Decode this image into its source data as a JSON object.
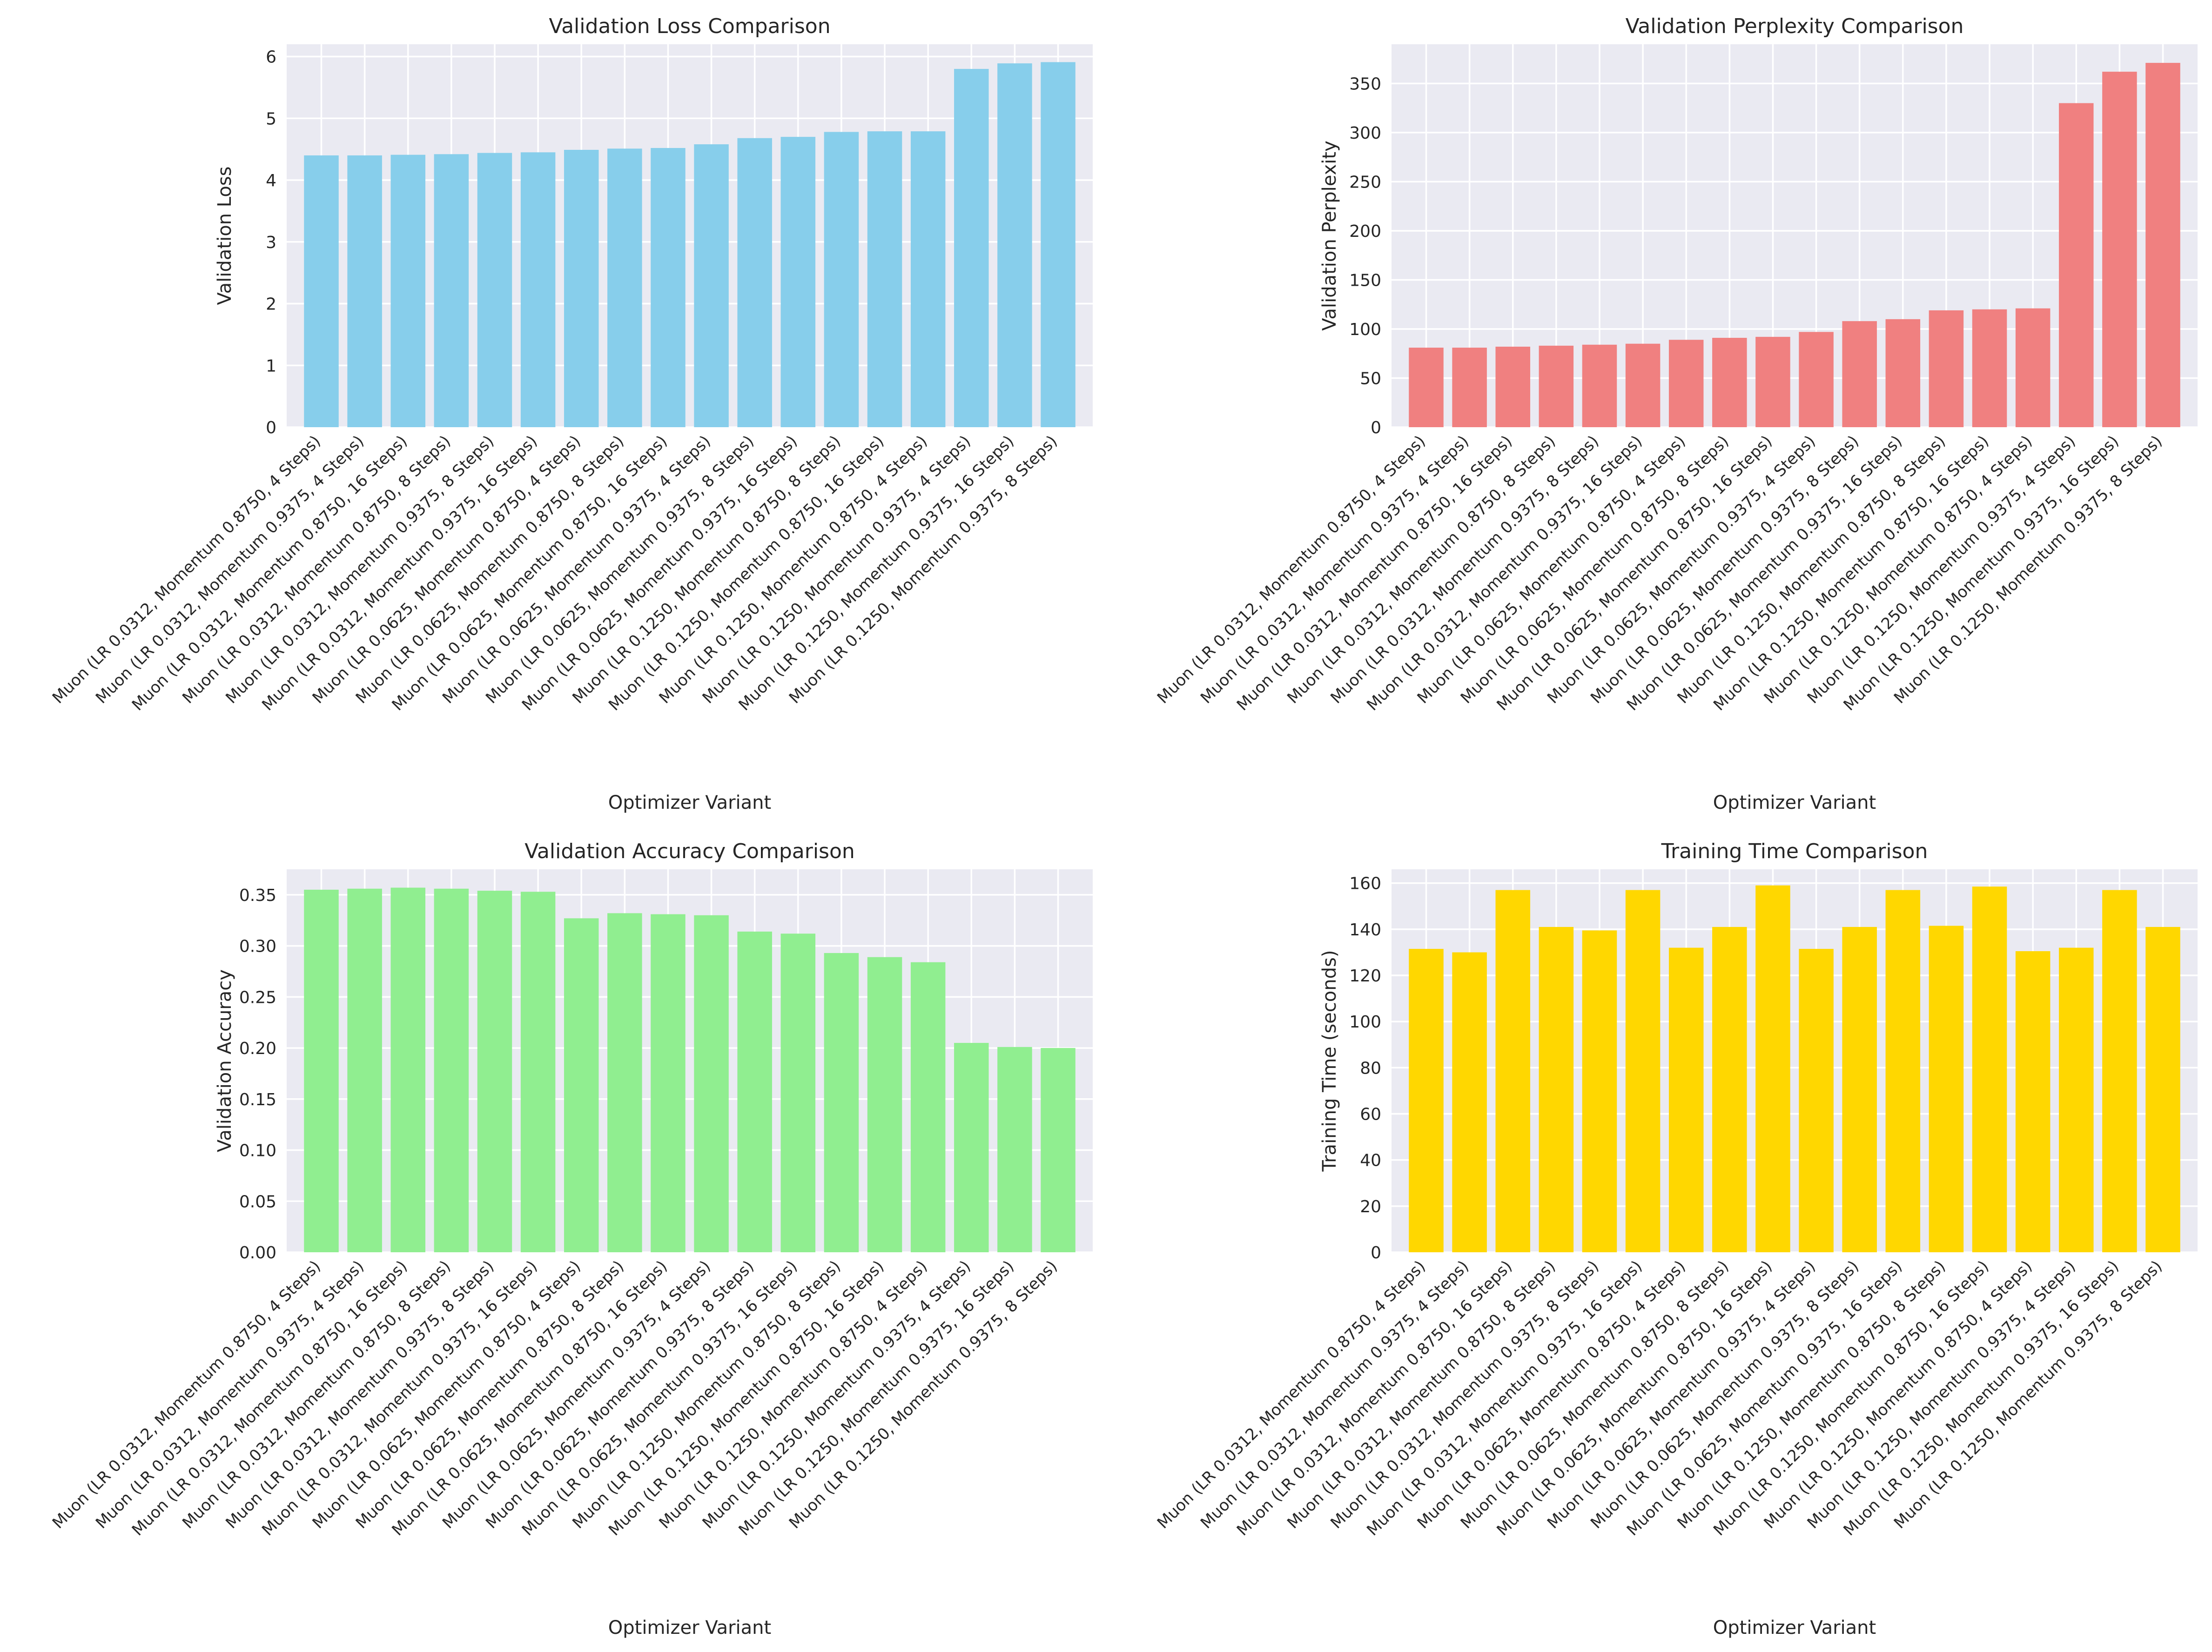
{
  "chart_data": [
    {
      "type": "bar",
      "title": "Validation Loss Comparison",
      "xlabel": "Optimizer Variant",
      "ylabel": "Validation Loss",
      "color": "#87ceeb",
      "ylim": [
        0,
        6.2
      ],
      "yticks": [
        0,
        1,
        2,
        3,
        4,
        5,
        6
      ],
      "grid": true,
      "categories": [
        "Muon (LR 0.0312, Momentum 0.8750, 4 Steps)",
        "Muon (LR 0.0312, Momentum 0.9375, 4 Steps)",
        "Muon (LR 0.0312, Momentum 0.8750, 16 Steps)",
        "Muon (LR 0.0312, Momentum 0.8750, 8 Steps)",
        "Muon (LR 0.0312, Momentum 0.9375, 8 Steps)",
        "Muon (LR 0.0312, Momentum 0.9375, 16 Steps)",
        "Muon (LR 0.0625, Momentum 0.8750, 4 Steps)",
        "Muon (LR 0.0625, Momentum 0.8750, 8 Steps)",
        "Muon (LR 0.0625, Momentum 0.8750, 16 Steps)",
        "Muon (LR 0.0625, Momentum 0.9375, 4 Steps)",
        "Muon (LR 0.0625, Momentum 0.9375, 8 Steps)",
        "Muon (LR 0.0625, Momentum 0.9375, 16 Steps)",
        "Muon (LR 0.1250, Momentum 0.8750, 8 Steps)",
        "Muon (LR 0.1250, Momentum 0.8750, 16 Steps)",
        "Muon (LR 0.1250, Momentum 0.8750, 4 Steps)",
        "Muon (LR 0.1250, Momentum 0.9375, 4 Steps)",
        "Muon (LR 0.1250, Momentum 0.9375, 16 Steps)",
        "Muon (LR 0.1250, Momentum 0.9375, 8 Steps)"
      ],
      "values": [
        4.4,
        4.4,
        4.41,
        4.42,
        4.44,
        4.45,
        4.49,
        4.51,
        4.52,
        4.58,
        4.68,
        4.7,
        4.78,
        4.79,
        4.79,
        5.8,
        5.89,
        5.91
      ]
    },
    {
      "type": "bar",
      "title": "Validation Perplexity Comparison",
      "xlabel": "Optimizer Variant",
      "ylabel": "Validation Perplexity",
      "color": "#f08080",
      "ylim": [
        0,
        390
      ],
      "yticks": [
        0,
        50,
        100,
        150,
        200,
        250,
        300,
        350
      ],
      "grid": true,
      "categories": [
        "Muon (LR 0.0312, Momentum 0.8750, 4 Steps)",
        "Muon (LR 0.0312, Momentum 0.9375, 4 Steps)",
        "Muon (LR 0.0312, Momentum 0.8750, 16 Steps)",
        "Muon (LR 0.0312, Momentum 0.8750, 8 Steps)",
        "Muon (LR 0.0312, Momentum 0.9375, 8 Steps)",
        "Muon (LR 0.0312, Momentum 0.9375, 16 Steps)",
        "Muon (LR 0.0625, Momentum 0.8750, 4 Steps)",
        "Muon (LR 0.0625, Momentum 0.8750, 8 Steps)",
        "Muon (LR 0.0625, Momentum 0.8750, 16 Steps)",
        "Muon (LR 0.0625, Momentum 0.9375, 4 Steps)",
        "Muon (LR 0.0625, Momentum 0.9375, 8 Steps)",
        "Muon (LR 0.0625, Momentum 0.9375, 16 Steps)",
        "Muon (LR 0.1250, Momentum 0.8750, 8 Steps)",
        "Muon (LR 0.1250, Momentum 0.8750, 16 Steps)",
        "Muon (LR 0.1250, Momentum 0.8750, 4 Steps)",
        "Muon (LR 0.1250, Momentum 0.9375, 4 Steps)",
        "Muon (LR 0.1250, Momentum 0.9375, 16 Steps)",
        "Muon (LR 0.1250, Momentum 0.9375, 8 Steps)"
      ],
      "values": [
        81,
        81,
        82,
        83,
        84,
        85,
        89,
        91,
        92,
        97,
        108,
        110,
        119,
        120,
        121,
        330,
        362,
        371
      ]
    },
    {
      "type": "bar",
      "title": "Validation Accuracy Comparison",
      "xlabel": "Optimizer Variant",
      "ylabel": "Validation Accuracy",
      "color": "#90ee90",
      "ylim": [
        0,
        0.375
      ],
      "yticks": [
        "0.00",
        "0.05",
        "0.10",
        "0.15",
        "0.20",
        "0.25",
        "0.30",
        "0.35"
      ],
      "grid": true,
      "categories": [
        "Muon (LR 0.0312, Momentum 0.8750, 4 Steps)",
        "Muon (LR 0.0312, Momentum 0.9375, 4 Steps)",
        "Muon (LR 0.0312, Momentum 0.8750, 16 Steps)",
        "Muon (LR 0.0312, Momentum 0.8750, 8 Steps)",
        "Muon (LR 0.0312, Momentum 0.9375, 8 Steps)",
        "Muon (LR 0.0312, Momentum 0.9375, 16 Steps)",
        "Muon (LR 0.0625, Momentum 0.8750, 4 Steps)",
        "Muon (LR 0.0625, Momentum 0.8750, 8 Steps)",
        "Muon (LR 0.0625, Momentum 0.8750, 16 Steps)",
        "Muon (LR 0.0625, Momentum 0.9375, 4 Steps)",
        "Muon (LR 0.0625, Momentum 0.9375, 8 Steps)",
        "Muon (LR 0.0625, Momentum 0.9375, 16 Steps)",
        "Muon (LR 0.1250, Momentum 0.8750, 8 Steps)",
        "Muon (LR 0.1250, Momentum 0.8750, 16 Steps)",
        "Muon (LR 0.1250, Momentum 0.8750, 4 Steps)",
        "Muon (LR 0.1250, Momentum 0.9375, 4 Steps)",
        "Muon (LR 0.1250, Momentum 0.9375, 16 Steps)",
        "Muon (LR 0.1250, Momentum 0.9375, 8 Steps)"
      ],
      "values": [
        0.355,
        0.356,
        0.357,
        0.356,
        0.354,
        0.353,
        0.327,
        0.332,
        0.331,
        0.33,
        0.314,
        0.312,
        0.293,
        0.289,
        0.284,
        0.205,
        0.201,
        0.2
      ]
    },
    {
      "type": "bar",
      "title": "Training Time Comparison",
      "xlabel": "Optimizer Variant",
      "ylabel": "Training Time (seconds)",
      "color": "#ffd700",
      "ylim": [
        0,
        166
      ],
      "yticks": [
        0,
        20,
        40,
        60,
        80,
        100,
        120,
        140,
        160
      ],
      "grid": true,
      "categories": [
        "Muon (LR 0.0312, Momentum 0.8750, 4 Steps)",
        "Muon (LR 0.0312, Momentum 0.9375, 4 Steps)",
        "Muon (LR 0.0312, Momentum 0.8750, 16 Steps)",
        "Muon (LR 0.0312, Momentum 0.8750, 8 Steps)",
        "Muon (LR 0.0312, Momentum 0.9375, 8 Steps)",
        "Muon (LR 0.0312, Momentum 0.9375, 16 Steps)",
        "Muon (LR 0.0625, Momentum 0.8750, 4 Steps)",
        "Muon (LR 0.0625, Momentum 0.8750, 8 Steps)",
        "Muon (LR 0.0625, Momentum 0.8750, 16 Steps)",
        "Muon (LR 0.0625, Momentum 0.9375, 4 Steps)",
        "Muon (LR 0.0625, Momentum 0.9375, 8 Steps)",
        "Muon (LR 0.0625, Momentum 0.9375, 16 Steps)",
        "Muon (LR 0.1250, Momentum 0.8750, 8 Steps)",
        "Muon (LR 0.1250, Momentum 0.8750, 16 Steps)",
        "Muon (LR 0.1250, Momentum 0.8750, 4 Steps)",
        "Muon (LR 0.1250, Momentum 0.9375, 4 Steps)",
        "Muon (LR 0.1250, Momentum 0.9375, 16 Steps)",
        "Muon (LR 0.1250, Momentum 0.9375, 8 Steps)"
      ],
      "values": [
        131.5,
        130.0,
        157.0,
        141.0,
        139.5,
        157.0,
        132.0,
        141.0,
        159.0,
        131.5,
        141.0,
        157.0,
        141.5,
        158.5,
        130.5,
        132.0,
        157.0,
        141.0
      ]
    }
  ]
}
